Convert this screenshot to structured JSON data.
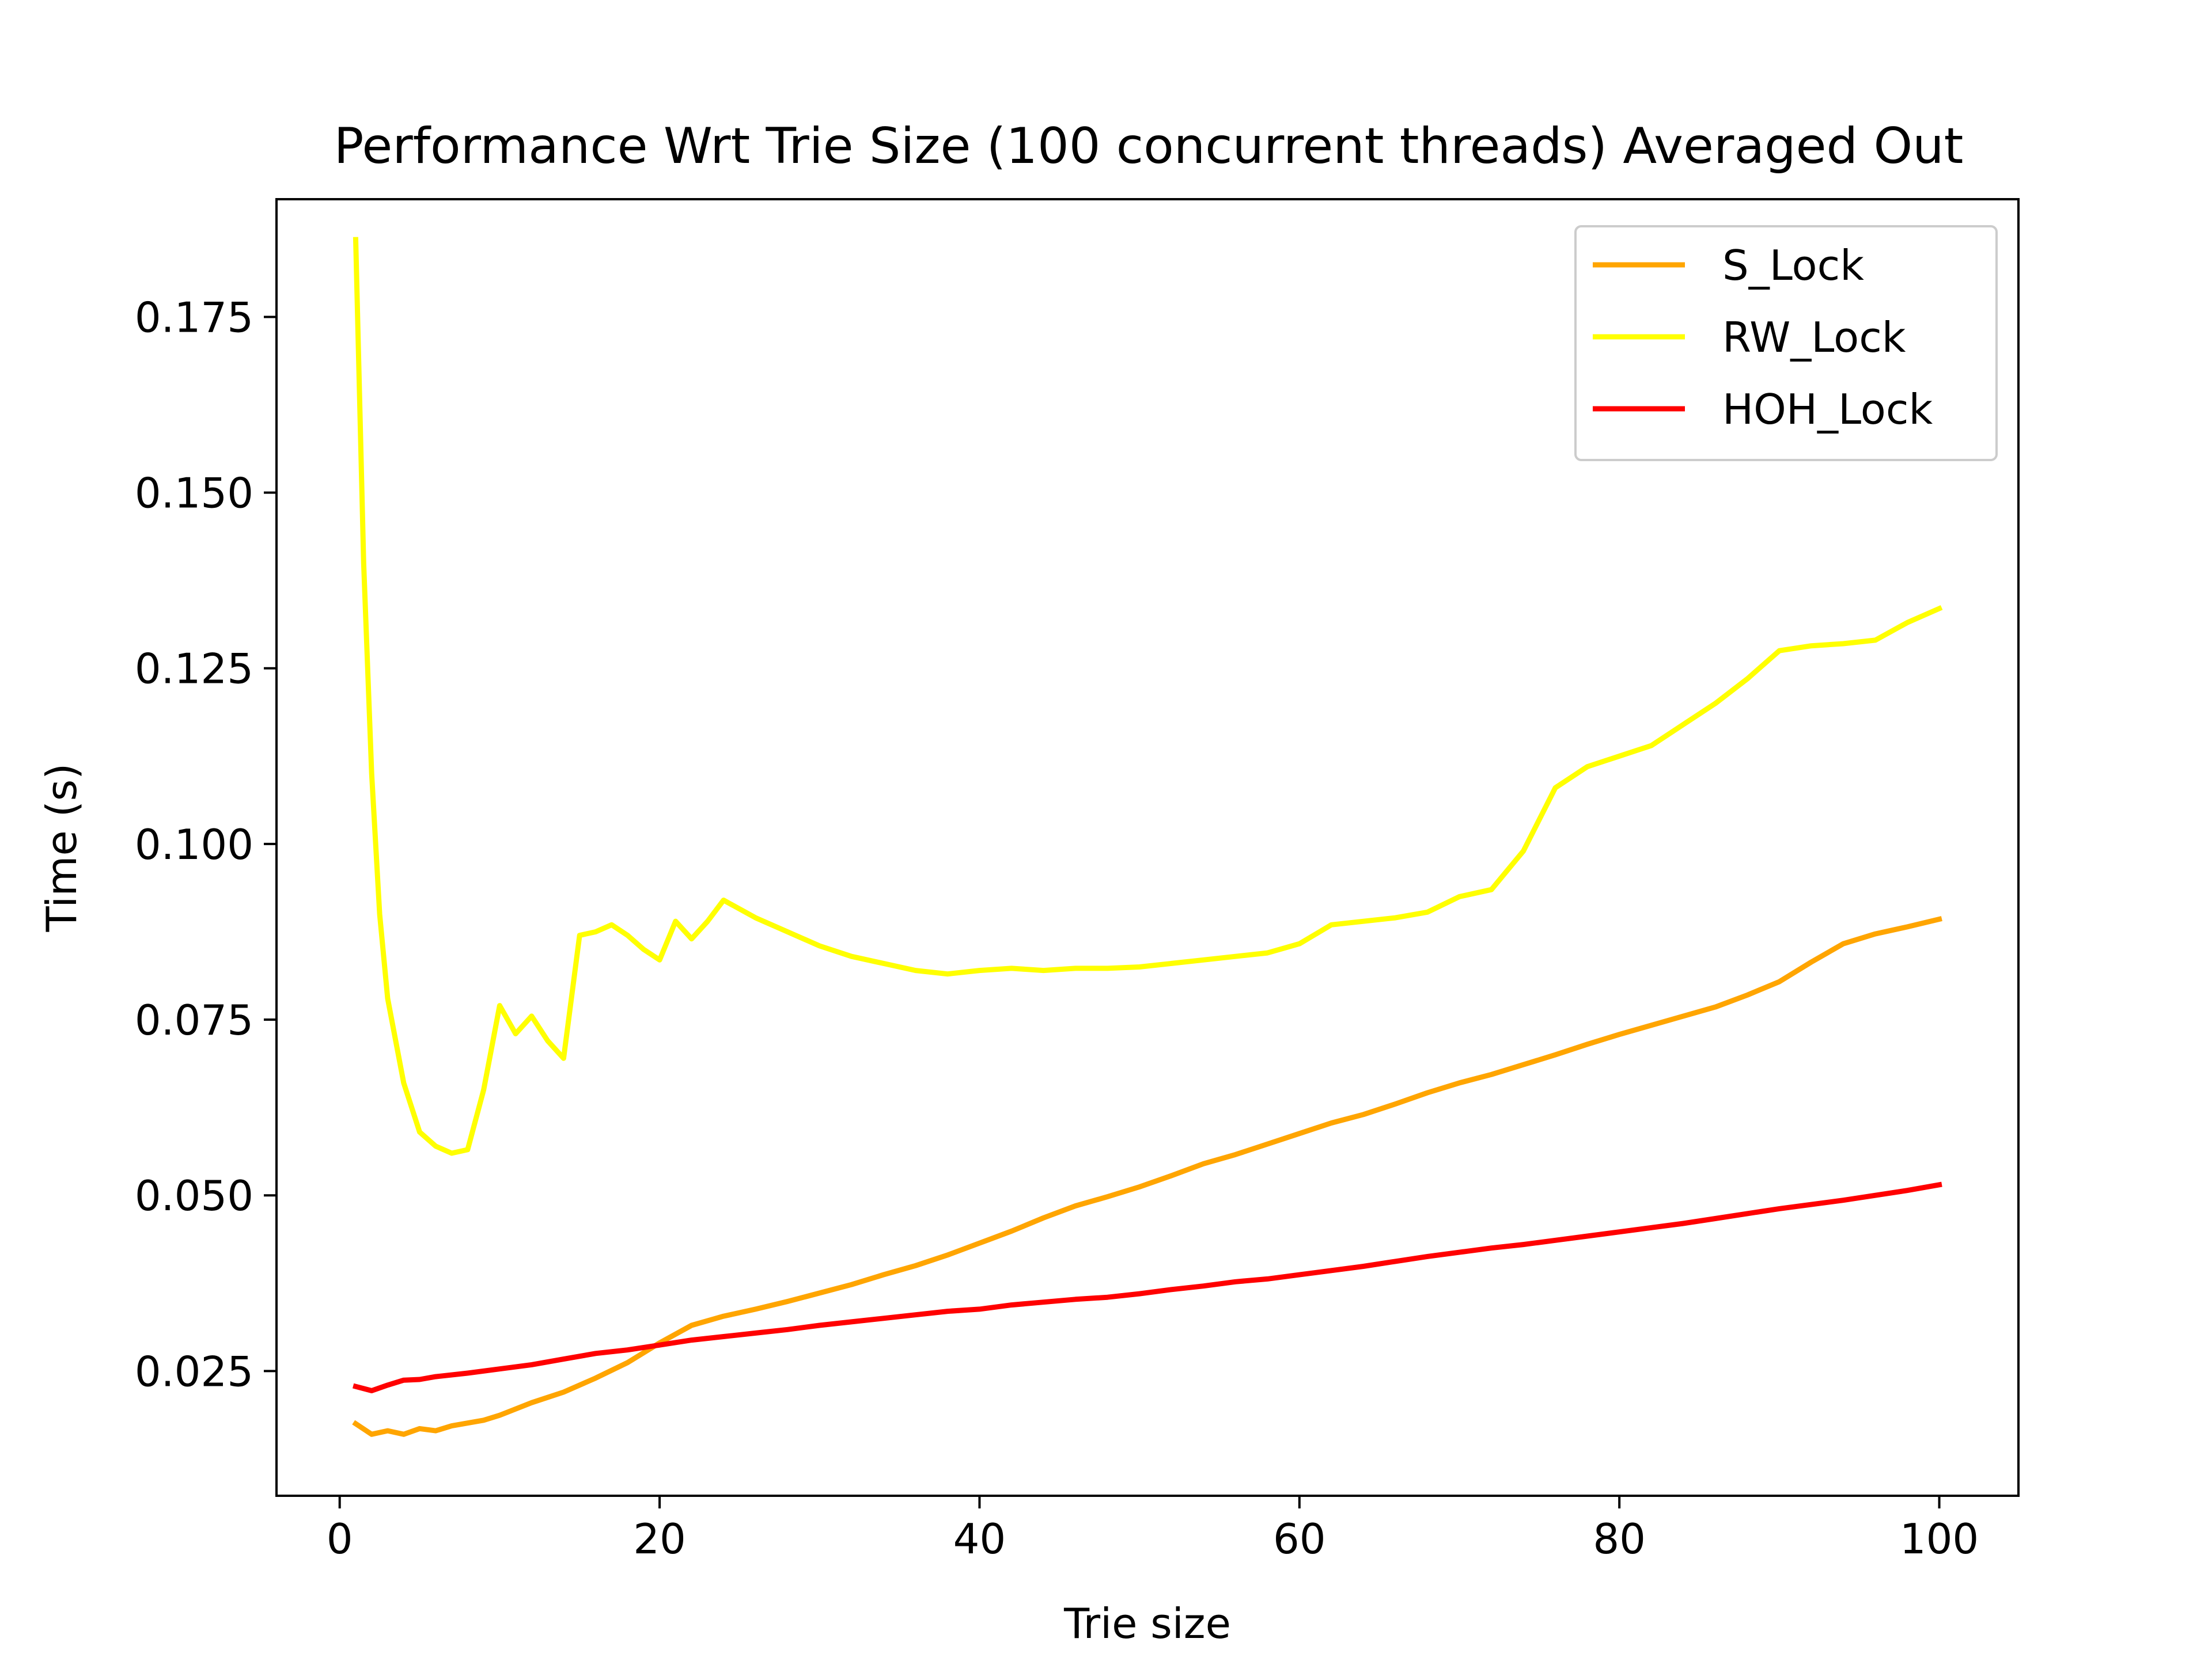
{
  "chart_data": {
    "type": "line",
    "title": "Performance Wrt Trie Size (100 concurrent threads) Averaged Out",
    "xlabel": "Trie size",
    "ylabel": "Time (s)",
    "xlim": [
      -3.95,
      104.95
    ],
    "ylim": [
      0.00725,
      0.19175
    ],
    "xticks": [
      0,
      20,
      40,
      60,
      80,
      100
    ],
    "xtick_labels": [
      "0",
      "20",
      "40",
      "60",
      "80",
      "100"
    ],
    "yticks": [
      0.025,
      0.05,
      0.075,
      0.1,
      0.125,
      0.15,
      0.175
    ],
    "ytick_labels": [
      "0.025",
      "0.050",
      "0.075",
      "0.100",
      "0.125",
      "0.150",
      "0.175"
    ],
    "grid": false,
    "legend_position": "top-right",
    "series": [
      {
        "name": "S_Lock",
        "color": "#ffa500",
        "x": [
          1,
          2,
          3,
          4,
          5,
          6,
          7,
          8,
          9,
          10,
          12,
          14,
          16,
          18,
          20,
          22,
          24,
          26,
          28,
          30,
          32,
          34,
          36,
          38,
          40,
          42,
          44,
          46,
          48,
          50,
          52,
          54,
          56,
          58,
          60,
          62,
          64,
          66,
          68,
          70,
          72,
          74,
          76,
          78,
          80,
          82,
          84,
          86,
          88,
          90,
          92,
          94,
          96,
          98,
          100
        ],
        "y": [
          0.0175,
          0.016,
          0.0165,
          0.016,
          0.0168,
          0.0165,
          0.0172,
          0.0176,
          0.018,
          0.0187,
          0.0205,
          0.022,
          0.024,
          0.0262,
          0.029,
          0.0315,
          0.0328,
          0.0338,
          0.0349,
          0.0361,
          0.0373,
          0.0387,
          0.04,
          0.0415,
          0.0432,
          0.0449,
          0.0468,
          0.0485,
          0.0498,
          0.0512,
          0.0528,
          0.0545,
          0.0558,
          0.0573,
          0.0588,
          0.0603,
          0.0615,
          0.063,
          0.0646,
          0.066,
          0.0672,
          0.0686,
          0.07,
          0.0715,
          0.0729,
          0.0742,
          0.0755,
          0.0768,
          0.0785,
          0.0804,
          0.0832,
          0.0858,
          0.0872,
          0.0882,
          0.0893
        ]
      },
      {
        "name": "RW_Lock",
        "color": "#ffff00",
        "x": [
          1,
          1.5,
          2,
          2.5,
          3,
          4,
          5,
          6,
          7,
          8,
          9,
          10,
          11,
          12,
          13,
          14,
          15,
          16,
          17,
          18,
          19,
          20,
          21,
          22,
          23,
          24,
          26,
          28,
          30,
          32,
          34,
          36,
          38,
          40,
          42,
          44,
          46,
          48,
          50,
          52,
          54,
          56,
          58,
          60,
          62,
          64,
          66,
          68,
          70,
          72,
          74,
          76,
          78,
          80,
          82,
          84,
          86,
          88,
          90,
          92,
          94,
          96,
          98,
          100
        ],
        "y": [
          0.186,
          0.14,
          0.11,
          0.09,
          0.078,
          0.066,
          0.059,
          0.057,
          0.056,
          0.0565,
          0.065,
          0.077,
          0.073,
          0.0755,
          0.072,
          0.0695,
          0.087,
          0.0875,
          0.0885,
          0.087,
          0.085,
          0.0835,
          0.089,
          0.0865,
          0.089,
          0.092,
          0.0895,
          0.0875,
          0.0855,
          0.084,
          0.083,
          0.082,
          0.0815,
          0.082,
          0.0823,
          0.082,
          0.0823,
          0.0823,
          0.0825,
          0.083,
          0.0835,
          0.084,
          0.0845,
          0.0858,
          0.0885,
          0.089,
          0.0895,
          0.0903,
          0.0925,
          0.0935,
          0.099,
          0.108,
          0.111,
          0.1125,
          0.114,
          0.117,
          0.12,
          0.1235,
          0.1275,
          0.1282,
          0.1285,
          0.129,
          0.1315,
          0.1335
        ]
      },
      {
        "name": "HOH_Lock",
        "color": "#ff0000",
        "x": [
          1,
          2,
          3,
          4,
          5,
          6,
          8,
          10,
          12,
          14,
          16,
          18,
          20,
          22,
          24,
          26,
          28,
          30,
          32,
          34,
          36,
          38,
          40,
          42,
          44,
          46,
          48,
          50,
          52,
          54,
          56,
          58,
          60,
          62,
          64,
          66,
          68,
          70,
          72,
          74,
          76,
          78,
          80,
          82,
          84,
          86,
          88,
          90,
          92,
          94,
          96,
          98,
          100
        ],
        "y": [
          0.0228,
          0.0222,
          0.023,
          0.0237,
          0.0238,
          0.0242,
          0.0247,
          0.0253,
          0.0259,
          0.0267,
          0.0275,
          0.028,
          0.0287,
          0.0294,
          0.0299,
          0.0304,
          0.0309,
          0.0315,
          0.032,
          0.0325,
          0.033,
          0.0335,
          0.0338,
          0.0344,
          0.0348,
          0.0352,
          0.0355,
          0.036,
          0.0366,
          0.0371,
          0.0377,
          0.0381,
          0.0387,
          0.0393,
          0.0399,
          0.0406,
          0.0413,
          0.0419,
          0.0425,
          0.043,
          0.0436,
          0.0442,
          0.0448,
          0.0454,
          0.046,
          0.0467,
          0.0474,
          0.0481,
          0.0487,
          0.0493,
          0.05,
          0.0507,
          0.0515
        ]
      }
    ]
  }
}
